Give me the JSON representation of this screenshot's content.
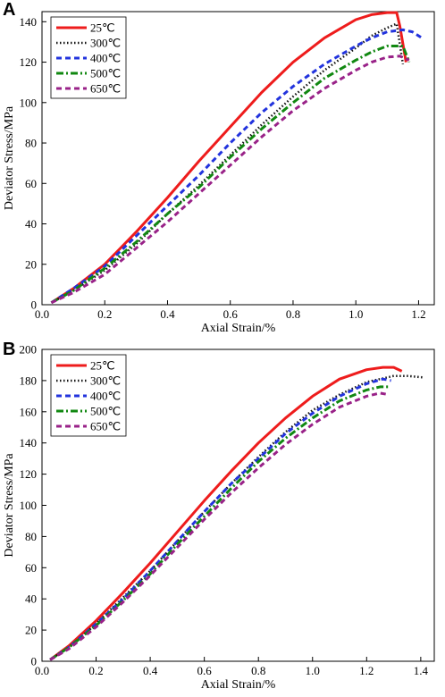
{
  "chart_data": [
    {
      "type": "line",
      "panel_label": "A",
      "xlabel": "Axial Strain/%",
      "ylabel": "Deviator Stress/MPa",
      "xlim": [
        0.0,
        1.25
      ],
      "ylim": [
        0,
        145
      ],
      "xticks": [
        "0.0",
        "0.2",
        "0.4",
        "0.6",
        "0.8",
        "1.0",
        "1.2"
      ],
      "yticks": [
        "0",
        "20",
        "40",
        "60",
        "80",
        "100",
        "120",
        "140"
      ],
      "legend_position": "top-left",
      "series": [
        {
          "name": "25℃",
          "color": "#ee1c1c",
          "dash": "solid",
          "x": [
            0.03,
            0.1,
            0.2,
            0.3,
            0.4,
            0.5,
            0.6,
            0.7,
            0.8,
            0.9,
            1.0,
            1.05,
            1.1,
            1.13,
            1.14,
            1.16
          ],
          "y": [
            1,
            8,
            20,
            36,
            53,
            71,
            88,
            105,
            120,
            132,
            141,
            143.5,
            144.5,
            144.5,
            138,
            120
          ]
        },
        {
          "name": "300℃",
          "color": "#111111",
          "dash": "dot",
          "x": [
            0.03,
            0.1,
            0.2,
            0.3,
            0.4,
            0.5,
            0.6,
            0.7,
            0.8,
            0.9,
            1.0,
            1.05,
            1.1,
            1.13,
            1.15
          ],
          "y": [
            1,
            7,
            17,
            30,
            45,
            59,
            74,
            89,
            103,
            116,
            127,
            133,
            137,
            139,
            119
          ]
        },
        {
          "name": "400℃",
          "color": "#2233dd",
          "dash": "dash",
          "x": [
            0.03,
            0.1,
            0.2,
            0.3,
            0.4,
            0.5,
            0.6,
            0.7,
            0.8,
            0.9,
            1.0,
            1.05,
            1.1,
            1.15,
            1.18,
            1.21
          ],
          "y": [
            1,
            8,
            19,
            34,
            49,
            64,
            80,
            95,
            108,
            119,
            128,
            132,
            135,
            136,
            135,
            132
          ]
        },
        {
          "name": "500℃",
          "color": "#118811",
          "dash": "dashdot",
          "x": [
            0.03,
            0.1,
            0.2,
            0.3,
            0.4,
            0.5,
            0.6,
            0.7,
            0.8,
            0.9,
            1.0,
            1.05,
            1.1,
            1.15,
            1.17
          ],
          "y": [
            1,
            7,
            18,
            31,
            45,
            58,
            73,
            87,
            100,
            112,
            121,
            125,
            128,
            128,
            120
          ]
        },
        {
          "name": "650℃",
          "color": "#992288",
          "dash": "dash",
          "x": [
            0.03,
            0.1,
            0.2,
            0.3,
            0.4,
            0.5,
            0.6,
            0.7,
            0.8,
            0.9,
            1.0,
            1.05,
            1.1,
            1.14,
            1.17
          ],
          "y": [
            1,
            6,
            15,
            28,
            41,
            55,
            69,
            83,
            96,
            107,
            116,
            120,
            122.5,
            123,
            121
          ]
        }
      ]
    },
    {
      "type": "line",
      "panel_label": "B",
      "xlabel": "Axial Strain/%",
      "ylabel": "Deviator Stress/MPa",
      "xlim": [
        0.0,
        1.45
      ],
      "ylim": [
        0,
        200
      ],
      "xticks": [
        "0.0",
        "0.2",
        "0.4",
        "0.6",
        "0.8",
        "1.0",
        "1.2",
        "1.4"
      ],
      "yticks": [
        "0",
        "20",
        "40",
        "60",
        "80",
        "100",
        "120",
        "140",
        "160",
        "180",
        "200"
      ],
      "legend_position": "top-left",
      "series": [
        {
          "name": "25℃",
          "color": "#ee1c1c",
          "dash": "solid",
          "x": [
            0.03,
            0.1,
            0.2,
            0.3,
            0.4,
            0.5,
            0.6,
            0.7,
            0.8,
            0.9,
            1.0,
            1.1,
            1.2,
            1.26,
            1.3,
            1.33
          ],
          "y": [
            1,
            10,
            26,
            44,
            63,
            83,
            103,
            122,
            140,
            156,
            170,
            181,
            187,
            188.5,
            188.5,
            186
          ]
        },
        {
          "name": "300℃",
          "color": "#111111",
          "dash": "dot",
          "x": [
            0.03,
            0.1,
            0.2,
            0.3,
            0.4,
            0.5,
            0.6,
            0.7,
            0.8,
            0.9,
            1.0,
            1.1,
            1.2,
            1.3,
            1.35,
            1.41
          ],
          "y": [
            1,
            9,
            24,
            41,
            58,
            77,
            96,
            114,
            131,
            147,
            161,
            171,
            179,
            183,
            183,
            182
          ]
        },
        {
          "name": "400℃",
          "color": "#2233dd",
          "dash": "dash",
          "x": [
            0.03,
            0.1,
            0.2,
            0.3,
            0.4,
            0.5,
            0.6,
            0.7,
            0.8,
            0.9,
            1.0,
            1.1,
            1.2,
            1.26,
            1.29
          ],
          "y": [
            1,
            9,
            24,
            40,
            58,
            77,
            96,
            114,
            130,
            146,
            159,
            170,
            178,
            181,
            180
          ]
        },
        {
          "name": "500℃",
          "color": "#118811",
          "dash": "dashdot",
          "x": [
            0.03,
            0.1,
            0.2,
            0.3,
            0.4,
            0.5,
            0.6,
            0.7,
            0.8,
            0.9,
            1.0,
            1.1,
            1.2,
            1.25,
            1.28
          ],
          "y": [
            1,
            9,
            23,
            39,
            56,
            75,
            93,
            111,
            128,
            143,
            156,
            167,
            174,
            176,
            176
          ]
        },
        {
          "name": "650℃",
          "color": "#992288",
          "dash": "dash",
          "x": [
            0.03,
            0.1,
            0.2,
            0.3,
            0.4,
            0.5,
            0.6,
            0.7,
            0.8,
            0.9,
            1.0,
            1.1,
            1.2,
            1.25,
            1.28
          ],
          "y": [
            1,
            8,
            22,
            38,
            55,
            73,
            91,
            108,
            124,
            139,
            152,
            163,
            170,
            172,
            171
          ]
        }
      ]
    }
  ]
}
